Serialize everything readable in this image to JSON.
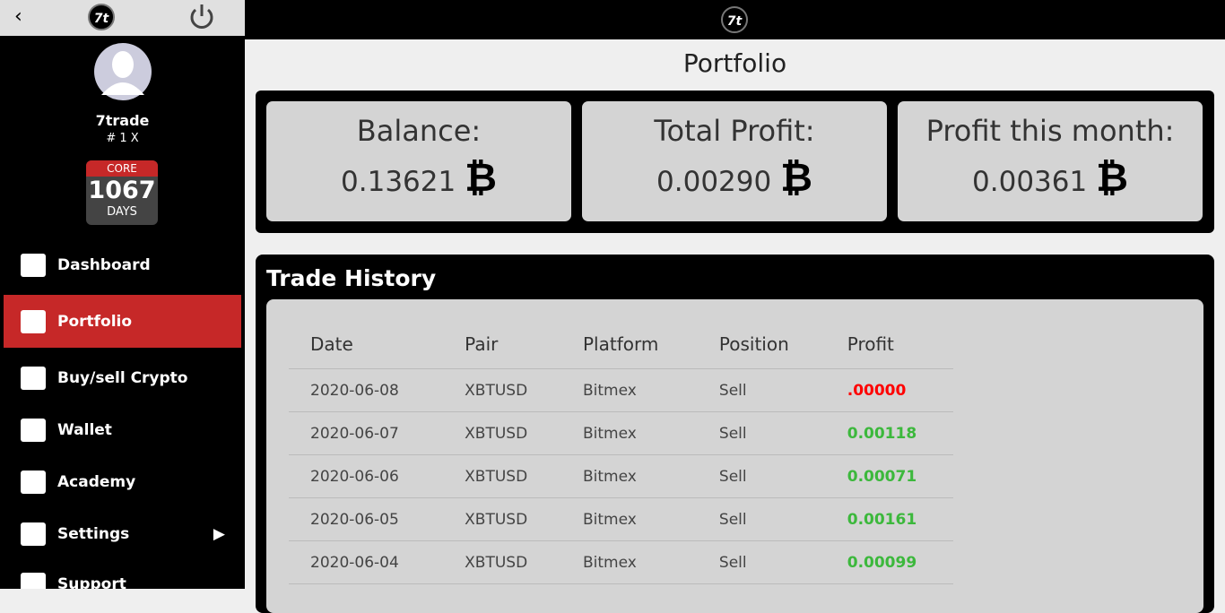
{
  "brand": {
    "logo_text": "7t"
  },
  "user": {
    "name": "7trade",
    "rank": "# 1 X",
    "badge_top": "CORE",
    "badge_number": "1067",
    "badge_bottom": "DAYS"
  },
  "menu": [
    "Dashboard",
    "Portfolio",
    "Buy/sell Crypto",
    "Wallet",
    "Academy",
    "Settings",
    "Support"
  ],
  "active_menu": 1,
  "page_title": "Portfolio",
  "currency_symbol": "₿",
  "cards": [
    {
      "label": "Balance:",
      "value": "0.13621"
    },
    {
      "label": "Total Profit:",
      "value": "0.00290"
    },
    {
      "label": "Profit this month:",
      "value": "0.00361"
    }
  ],
  "table": {
    "title": "Trade History",
    "headers": [
      "Date",
      "Pair",
      "Platform",
      "Position",
      "Profit"
    ],
    "rows": [
      [
        "2020-06-08",
        "XBTUSD",
        "Bitmex",
        "Sell",
        ".00000"
      ],
      [
        "2020-06-07",
        "XBTUSD",
        "Bitmex",
        "Sell",
        "0.00118"
      ],
      [
        "2020-06-06",
        "XBTUSD",
        "Bitmex",
        "Sell",
        "0.00071"
      ],
      [
        "2020-06-05",
        "XBTUSD",
        "Bitmex",
        "Sell",
        "0.00161"
      ],
      [
        "2020-06-04",
        "XBTUSD",
        "Bitmex",
        "Sell",
        "0.00099"
      ]
    ],
    "profit_colors": [
      "#ff0000",
      "#3cb83c",
      "#3cb83c",
      "#3cb83c",
      "#3cb83c"
    ]
  }
}
